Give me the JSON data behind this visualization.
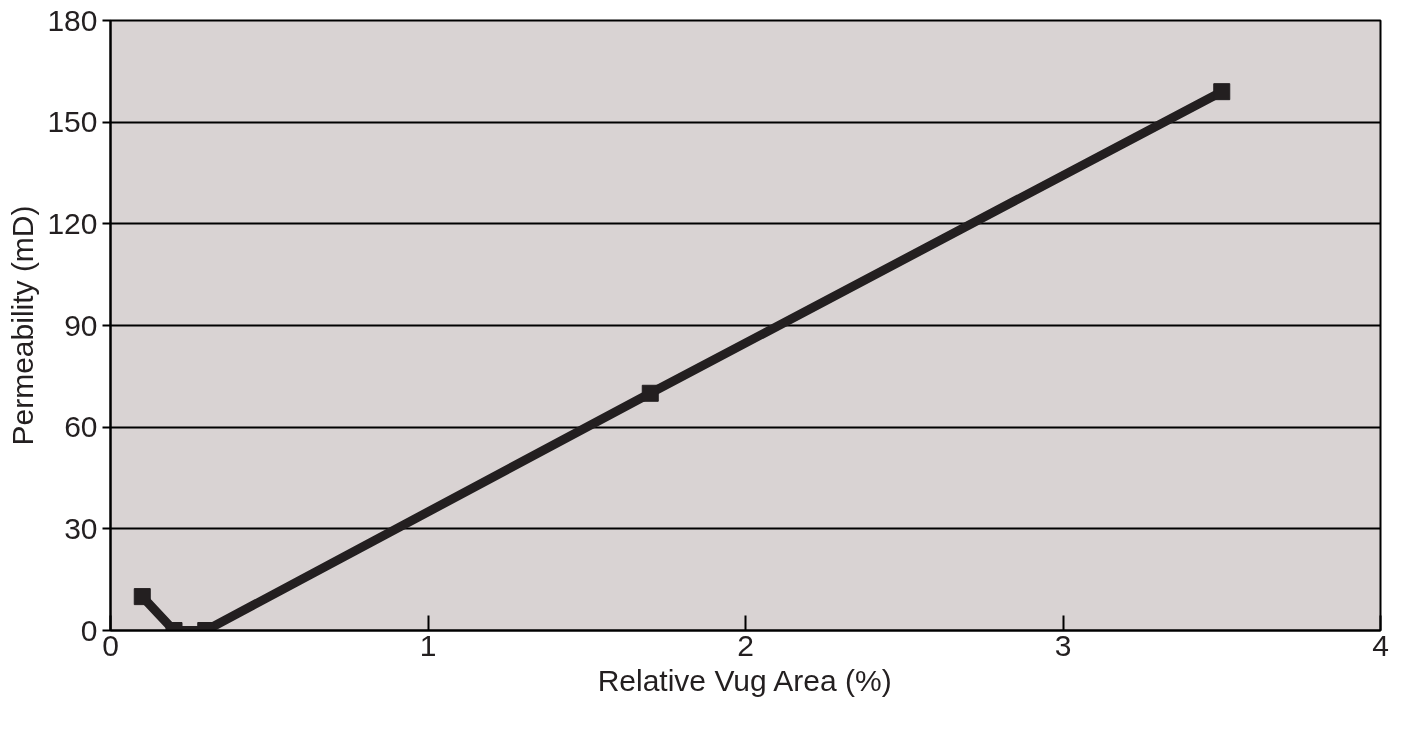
{
  "chart_data": {
    "type": "line",
    "xlabel": "Relative Vug Area (%)",
    "ylabel": "Permeability (mD)",
    "x": [
      0.1,
      0.2,
      0.3,
      1.7,
      3.5
    ],
    "series": [
      {
        "color": "#231f20",
        "values": [
          10,
          0,
          0,
          70,
          159
        ]
      }
    ],
    "xlim": [
      0,
      4
    ],
    "ylim": [
      0,
      180
    ],
    "xticks": [
      0,
      1,
      2,
      3,
      4
    ],
    "yticks": [
      0,
      30,
      60,
      90,
      120,
      150,
      180
    ],
    "grid": "y",
    "marker": "square",
    "line_style": "solid"
  }
}
